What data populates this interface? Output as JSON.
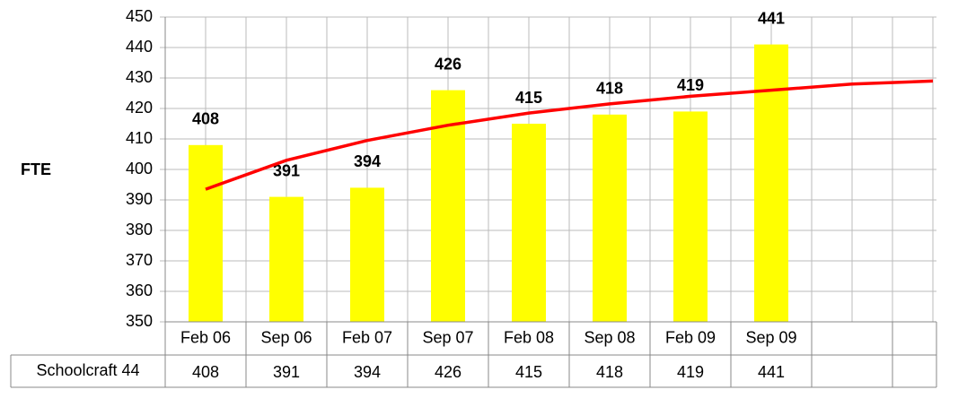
{
  "chart_data": {
    "type": "bar",
    "y_label": "FTE",
    "categories": [
      "Feb 06",
      "Sep 06",
      "Feb 07",
      "Sep 07",
      "Feb 08",
      "Sep 08",
      "Feb 09",
      "Sep 09",
      null,
      null
    ],
    "series": [
      {
        "name": "Schoolcraft 44",
        "color": "#ffff00",
        "values": [
          408,
          391,
          394,
          426,
          415,
          418,
          419,
          441,
          null,
          null
        ]
      }
    ],
    "trendline": {
      "color": "#ff0000",
      "values": [
        393.5,
        403,
        409.5,
        414.5,
        418.5,
        421.5,
        424,
        426,
        428,
        429
      ]
    },
    "ylim": [
      350,
      450
    ],
    "yticks": [
      350,
      360,
      370,
      380,
      390,
      400,
      410,
      420,
      430,
      440,
      450
    ],
    "grid": true,
    "data_table": true
  }
}
